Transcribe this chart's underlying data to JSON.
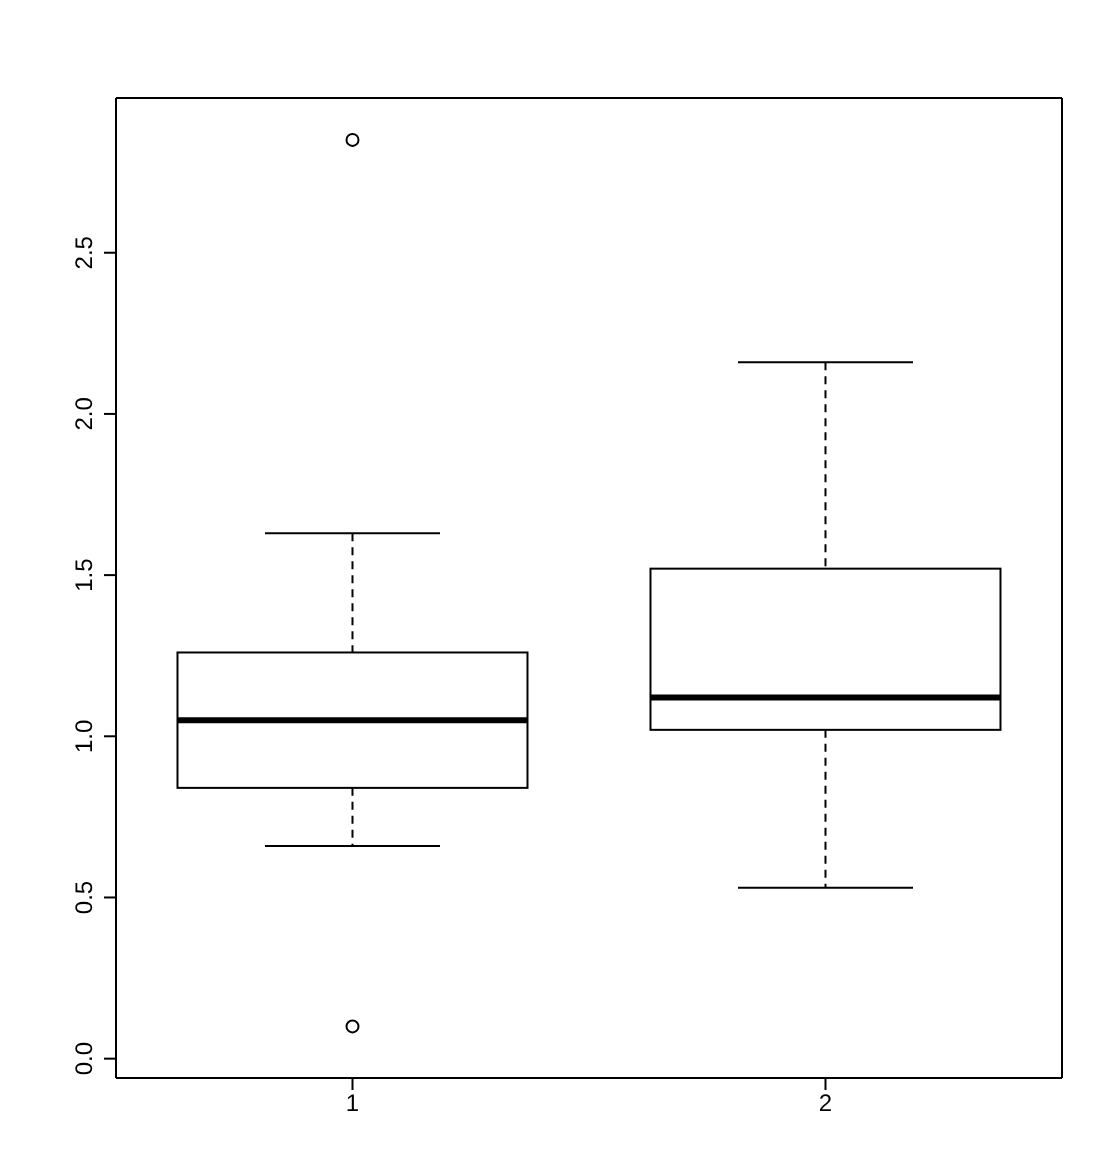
{
  "chart_data": {
    "type": "box",
    "categories": [
      "1",
      "2"
    ],
    "boxes": [
      {
        "low": 0.66,
        "q1": 0.84,
        "median": 1.05,
        "q3": 1.26,
        "high": 1.63,
        "outliers": [
          2.85,
          0.1
        ]
      },
      {
        "low": 0.53,
        "q1": 1.02,
        "median": 1.12,
        "q3": 1.52,
        "high": 2.16
      }
    ],
    "color": "#000000",
    "ylim": [
      -0.06,
      2.98
    ],
    "yticks": [
      {
        "value": 0,
        "label": "0.0"
      },
      {
        "value": 0.5,
        "label": "0.5"
      },
      {
        "value": 1,
        "label": "1.0"
      },
      {
        "value": 1.5,
        "label": "1.5"
      },
      {
        "value": 2,
        "label": "2.0"
      },
      {
        "value": 2.5,
        "label": "2.5"
      }
    ]
  }
}
